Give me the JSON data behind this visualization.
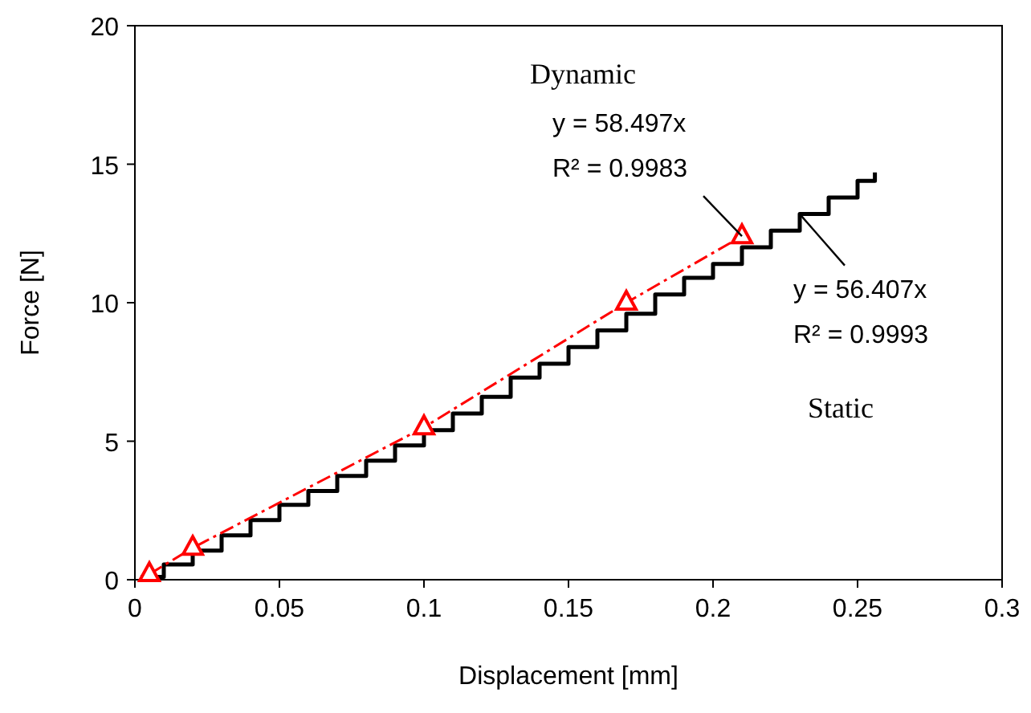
{
  "chart_data": {
    "type": "step",
    "xlabel": "Displacement [mm]",
    "ylabel": "Force [N]",
    "xlim": [
      0,
      0.3
    ],
    "xticks": [
      0,
      0.05,
      0.1,
      0.15,
      0.2,
      0.25,
      0.3
    ],
    "ylim": [
      0,
      20
    ],
    "yticks": [
      0,
      5,
      10,
      15,
      20
    ],
    "grid": false,
    "series": [
      {
        "color": "#000000",
        "marker": "none",
        "line_style": "solid",
        "x": [
          0.002,
          0.01,
          0.02,
          0.03,
          0.04,
          0.05,
          0.06,
          0.07,
          0.08,
          0.09,
          0.1,
          0.11,
          0.12,
          0.13,
          0.14,
          0.15,
          0.16,
          0.17,
          0.18,
          0.19,
          0.2,
          0.21,
          0.22,
          0.23,
          0.24,
          0.25,
          0.256
        ],
        "values": [
          0.1,
          0.55,
          1.05,
          1.6,
          2.15,
          2.7,
          3.2,
          3.75,
          4.3,
          4.85,
          5.4,
          6.0,
          6.6,
          7.3,
          7.8,
          8.4,
          9.0,
          9.6,
          10.3,
          10.9,
          11.4,
          12.0,
          12.6,
          13.2,
          13.8,
          14.4,
          14.7
        ]
      },
      {
        "type": "line",
        "color": "#ff0000",
        "marker": "triangle",
        "line_style": "dashed",
        "x": [
          0.005,
          0.02,
          0.1,
          0.17,
          0.21
        ],
        "values": [
          0.2,
          1.15,
          5.5,
          10.0,
          12.4
        ]
      }
    ],
    "annotations": [
      "Dynamic",
      {
        "text": "y = 58.497x\nR² = 0.9983",
        "x": 0.21,
        "y": 12.4
      },
      {
        "text": "y = 56.407x\nR² = 0.9993",
        "x": 0.23,
        "y": 13.2
      },
      "Static"
    ]
  }
}
